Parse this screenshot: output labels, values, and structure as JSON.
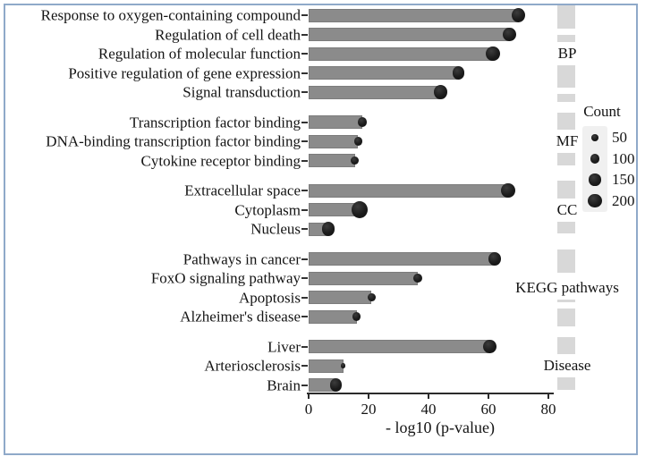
{
  "colors": {
    "bar": "#8b8b8b",
    "dot": "#1b1b1b",
    "strip": "#d8d8d8",
    "frame_border": "#8fa9c9",
    "legend_key_bg": "#f0f0f0",
    "text": "#141414"
  },
  "chart_data": {
    "type": "bar",
    "orientation": "horizontal",
    "title": "",
    "xlabel": "- log10 (p-value)",
    "ylabel": "",
    "xlim": [
      0,
      80
    ],
    "xticks": [
      0,
      20,
      40,
      60,
      80
    ],
    "grid": false,
    "point_size_encoding": "Count",
    "legend": {
      "title": "Count",
      "position": "right",
      "sizes": [
        50,
        100,
        150,
        200
      ]
    },
    "groups": [
      {
        "facet": "BP",
        "rows": [
          {
            "label": "Response to oxygen-containing compound",
            "value": 70,
            "count": 210
          },
          {
            "label": "Regulation of cell death",
            "value": 67,
            "count": 190
          },
          {
            "label": "Regulation of molecular function",
            "value": 61.5,
            "count": 205
          },
          {
            "label": "Positive regulation of gene expression",
            "value": 50,
            "count": 150
          },
          {
            "label": "Signal transduction",
            "value": 44,
            "count": 190
          }
        ]
      },
      {
        "facet": "MF",
        "rows": [
          {
            "label": "Transcription factor binding",
            "value": 18,
            "count": 85
          },
          {
            "label": "DNA-binding transcription factor binding",
            "value": 16.5,
            "count": 70
          },
          {
            "label": "Cytokine receptor binding",
            "value": 15.5,
            "count": 70
          }
        ]
      },
      {
        "facet": "CC",
        "rows": [
          {
            "label": "Extracellular space",
            "value": 66.5,
            "count": 210
          },
          {
            "label": "Cytoplasm",
            "value": 17,
            "count": 280
          },
          {
            "label": "Nucleus",
            "value": 6.5,
            "count": 175
          }
        ]
      },
      {
        "facet": "KEGG pathways",
        "rows": [
          {
            "label": "Pathways in cancer",
            "value": 62,
            "count": 165
          },
          {
            "label": "FoxO signaling pathway",
            "value": 36.5,
            "count": 85
          },
          {
            "label": "Apoptosis",
            "value": 21,
            "count": 70
          },
          {
            "label": "Alzheimer's disease",
            "value": 16,
            "count": 70
          }
        ]
      },
      {
        "facet": "Disease",
        "rows": [
          {
            "label": "Liver",
            "value": 60.5,
            "count": 190
          },
          {
            "label": "Arteriosclerosis",
            "value": 11.5,
            "count": 20
          },
          {
            "label": "Brain",
            "value": 9,
            "count": 150
          }
        ]
      }
    ]
  }
}
